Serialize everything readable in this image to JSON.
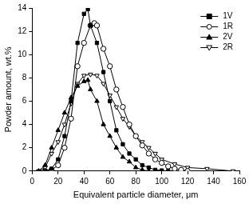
{
  "chart_data": {
    "type": "line",
    "x_label": "Equivalent particle diameter, μm",
    "y_label": "Powder amount, wt.%",
    "xlim": [
      0,
      160
    ],
    "xticks": [
      0,
      20,
      40,
      60,
      80,
      100,
      120,
      140,
      160
    ],
    "ylim": [
      0,
      14
    ],
    "yticks": [
      0,
      2,
      4,
      6,
      8,
      10,
      12,
      14
    ],
    "grid": false,
    "legend": "upper right",
    "series": [
      {
        "name": "1V",
        "color": "#000000",
        "marker": "filled_square",
        "line_style": "solid",
        "x": [
          10,
          15,
          20,
          25,
          30,
          35,
          40,
          43,
          45,
          50,
          55,
          60,
          65,
          70,
          75,
          80,
          85,
          90,
          95,
          100,
          105
        ],
        "values": [
          0,
          0.2,
          1,
          3,
          6,
          11,
          13.5,
          13.9,
          12.5,
          11,
          8.5,
          6,
          3.5,
          2.3,
          1.5,
          1,
          0.5,
          0.3,
          0.1,
          0.05,
          0
        ]
      },
      {
        "name": "1R",
        "color": "#000000",
        "marker": "open_circle",
        "line_style": "solid",
        "x": [
          10,
          15,
          20,
          25,
          30,
          35,
          40,
          45,
          48,
          50,
          55,
          60,
          65,
          70,
          75,
          80,
          85,
          90,
          95,
          100,
          105,
          110,
          115,
          120
        ],
        "values": [
          0,
          0.1,
          0.5,
          2,
          4.5,
          9,
          11,
          12.5,
          12.7,
          12.5,
          10.5,
          9,
          7,
          5.5,
          4,
          3,
          2.2,
          1.5,
          1,
          0.7,
          0.4,
          0.2,
          0.1,
          0
        ]
      },
      {
        "name": "2V",
        "color": "#000000",
        "marker": "filled_triangle",
        "line_style": "solid",
        "x": [
          5,
          10,
          15,
          20,
          25,
          30,
          35,
          40,
          43,
          45,
          50,
          55,
          60,
          65,
          70,
          75,
          80,
          85,
          90
        ],
        "values": [
          0,
          0.5,
          2,
          3.5,
          5,
          6.3,
          7.3,
          7.7,
          7.8,
          7,
          6,
          4,
          3,
          2,
          1.2,
          0.8,
          0.3,
          0.1,
          0
        ]
      },
      {
        "name": "2R",
        "color": "#000000",
        "marker": "open_triangle_down",
        "line_style": "solid",
        "x": [
          5,
          10,
          15,
          20,
          25,
          30,
          35,
          40,
          45,
          50,
          55,
          60,
          65,
          70,
          75,
          80,
          85,
          90,
          95,
          100,
          110,
          120,
          135,
          155
        ],
        "values": [
          0,
          0.3,
          1.5,
          2.5,
          4,
          5.8,
          7.5,
          8.2,
          8.3,
          8.2,
          7.5,
          6.5,
          5.5,
          4.5,
          3.8,
          3,
          2.5,
          2,
          1.5,
          1,
          0.6,
          0.3,
          0.2,
          0
        ]
      }
    ]
  }
}
